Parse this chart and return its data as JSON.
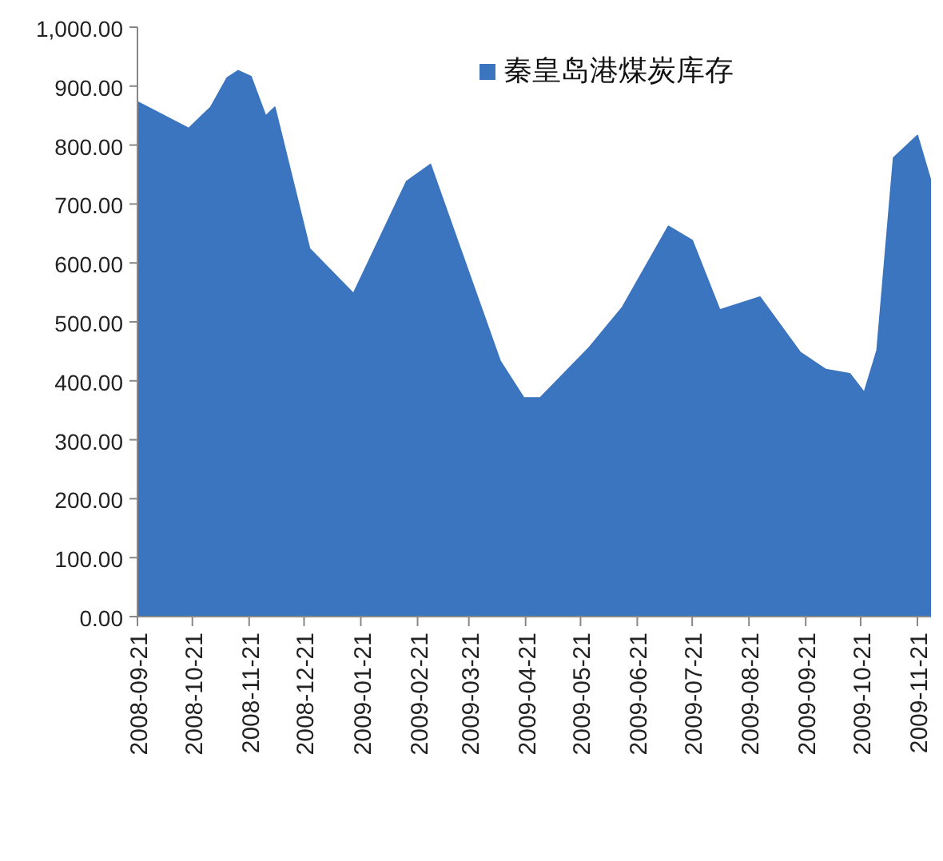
{
  "chart_data": {
    "type": "area",
    "x": [
      "2008-09-21",
      "2008-10-19",
      "2008-10-31",
      "2008-11-09",
      "2008-11-15",
      "2008-11-22",
      "2008-11-30",
      "2008-12-05",
      "2008-12-24",
      "2009-01-17",
      "2009-02-15",
      "2009-02-28",
      "2009-04-07",
      "2009-04-20",
      "2009-04-29",
      "2009-05-26",
      "2009-06-13",
      "2009-07-08",
      "2009-07-21",
      "2009-08-05",
      "2009-08-27",
      "2009-09-18",
      "2009-10-02",
      "2009-10-15",
      "2009-10-23",
      "2009-10-30",
      "2009-11-08",
      "2009-11-21",
      "2009-11-28"
    ],
    "series": [
      {
        "name": "秦皇岛港煤炭库存",
        "color": "#3b74bf",
        "values": [
          873,
          828,
          864,
          914,
          926,
          916,
          849,
          864,
          624,
          548,
          738,
          767,
          434,
          371,
          371,
          457,
          525,
          662,
          638,
          520,
          542,
          448,
          419,
          412,
          380,
          452,
          778,
          816,
          742
        ]
      }
    ],
    "xlim": [
      "2008-09-21",
      "2009-11-28"
    ],
    "xticks": [
      {
        "value": "2008-09-21",
        "label": "2008-09-21"
      },
      {
        "value": "2008-10-21",
        "label": "2008-10-21"
      },
      {
        "value": "2008-11-21",
        "label": "2008-11-21"
      },
      {
        "value": "2008-12-21",
        "label": "2008-12-21"
      },
      {
        "value": "2009-01-21",
        "label": "2009-01-21"
      },
      {
        "value": "2009-02-21",
        "label": "2009-02-21"
      },
      {
        "value": "2009-03-21",
        "label": "2009-03-21"
      },
      {
        "value": "2009-04-21",
        "label": "2009-04-21"
      },
      {
        "value": "2009-05-21",
        "label": "2009-05-21"
      },
      {
        "value": "2009-06-21",
        "label": "2009-06-21"
      },
      {
        "value": "2009-07-21",
        "label": "2009-07-21"
      },
      {
        "value": "2009-08-21",
        "label": "2009-08-21"
      },
      {
        "value": "2009-09-21",
        "label": "2009-09-21"
      },
      {
        "value": "2009-10-21",
        "label": "2009-10-21"
      },
      {
        "value": "2009-11-21",
        "label": "2009-11-21"
      }
    ],
    "ylim": [
      0,
      1000
    ],
    "yticks": [
      {
        "value": 0,
        "label": "0.00"
      },
      {
        "value": 100,
        "label": "100.00"
      },
      {
        "value": 200,
        "label": "200.00"
      },
      {
        "value": 300,
        "label": "300.00"
      },
      {
        "value": 400,
        "label": "400.00"
      },
      {
        "value": 500,
        "label": "500.00"
      },
      {
        "value": 600,
        "label": "600.00"
      },
      {
        "value": 700,
        "label": "700.00"
      },
      {
        "value": 800,
        "label": "800.00"
      },
      {
        "value": 900,
        "label": "900.00"
      },
      {
        "value": 1000,
        "label": "1,000.00"
      }
    ],
    "grid": false,
    "legend": "top",
    "marker": "none"
  }
}
